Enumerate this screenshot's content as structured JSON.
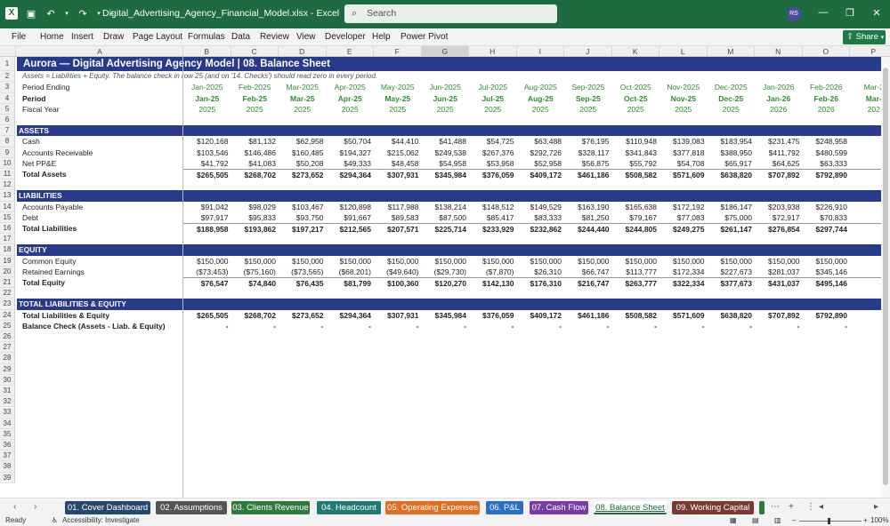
{
  "window": {
    "filename": "Digital_Advertising_Agency_Financial_Model.xlsx",
    "app": "Excel",
    "search_placeholder": "Search",
    "avatar": "RS",
    "accent": "#1d6b3e"
  },
  "menu": [
    "File",
    "Home",
    "Insert",
    "Draw",
    "Page Layout",
    "Formulas",
    "Data",
    "Review",
    "View",
    "Developer",
    "Help",
    "Power Pivot"
  ],
  "share_label": "Share",
  "columns": [
    "A",
    "B",
    "C",
    "D",
    "E",
    "F",
    "G",
    "H",
    "I",
    "J",
    "K",
    "L",
    "M",
    "N",
    "O",
    "P"
  ],
  "selected_column": "G",
  "sheet": {
    "title": "Aurora — Digital Advertising Agency Model  |  08. Balance Sheet",
    "note": "Assets = Liabilities + Equity. The balance check in row 25 (and on '14. Checks') should read zero in every period.",
    "period_ending_label": "Period Ending",
    "period_label": "Period",
    "fiscal_year_label": "Fiscal Year",
    "period_ending": [
      "Jan-2025",
      "Feb-2025",
      "Mar-2025",
      "Apr-2025",
      "May-2025",
      "Jun-2025",
      "Jul-2025",
      "Aug-2025",
      "Sep-2025",
      "Oct-2025",
      "Nov-2025",
      "Dec-2025",
      "Jan-2026",
      "Feb-2026",
      "Mar-2"
    ],
    "period": [
      "Jan-25",
      "Feb-25",
      "Mar-25",
      "Apr-25",
      "May-25",
      "Jun-25",
      "Jul-25",
      "Aug-25",
      "Sep-25",
      "Oct-25",
      "Nov-25",
      "Dec-25",
      "Jan-26",
      "Feb-26",
      "Mar-"
    ],
    "fiscal_year": [
      "2025",
      "2025",
      "2025",
      "2025",
      "2025",
      "2025",
      "2025",
      "2025",
      "2025",
      "2025",
      "2025",
      "2025",
      "2026",
      "2026",
      "202"
    ],
    "sections": {
      "assets": "ASSETS",
      "liabilities": "LIABILITIES",
      "equity": "EQUITY",
      "total_le": "TOTAL LIABILITIES & EQUITY"
    },
    "rows": {
      "cash": {
        "label": "Cash",
        "values": [
          "$120,168",
          "$81,132",
          "$62,958",
          "$50,704",
          "$44,410",
          "$41,488",
          "$54,725",
          "$63,488",
          "$76,195",
          "$110,948",
          "$139,083",
          "$183,954",
          "$231,475",
          "$248,958",
          "$32"
        ]
      },
      "ar": {
        "label": "Accounts Receivable",
        "values": [
          "$103,546",
          "$146,486",
          "$160,485",
          "$194,327",
          "$215,062",
          "$249,538",
          "$267,376",
          "$292,726",
          "$328,117",
          "$341,843",
          "$377,818",
          "$388,950",
          "$411,792",
          "$480,599",
          "$45"
        ]
      },
      "ppe": {
        "label": "Net PP&E",
        "values": [
          "$41,792",
          "$41,083",
          "$50,208",
          "$49,333",
          "$48,458",
          "$54,958",
          "$53,958",
          "$52,958",
          "$56,875",
          "$55,792",
          "$54,708",
          "$65,917",
          "$64,625",
          "$63,333",
          "$6"
        ]
      },
      "total_assets": {
        "label": "Total Assets",
        "values": [
          "$265,505",
          "$268,702",
          "$273,652",
          "$294,364",
          "$307,931",
          "$345,984",
          "$376,059",
          "$409,172",
          "$461,186",
          "$508,582",
          "$571,609",
          "$638,820",
          "$707,892",
          "$792,890",
          "$84"
        ]
      },
      "ap": {
        "label": "Accounts Payable",
        "values": [
          "$91,042",
          "$98,029",
          "$103,467",
          "$120,898",
          "$117,988",
          "$138,214",
          "$148,512",
          "$149,529",
          "$163,190",
          "$165,638",
          "$172,192",
          "$186,147",
          "$203,938",
          "$226,910",
          "$20"
        ]
      },
      "debt": {
        "label": "Debt",
        "values": [
          "$97,917",
          "$95,833",
          "$93,750",
          "$91,667",
          "$89,583",
          "$87,500",
          "$85,417",
          "$83,333",
          "$81,250",
          "$79,167",
          "$77,083",
          "$75,000",
          "$72,917",
          "$70,833",
          "$6"
        ]
      },
      "total_liabilities": {
        "label": "Total Liabilities",
        "values": [
          "$188,958",
          "$193,862",
          "$197,217",
          "$212,565",
          "$207,571",
          "$225,714",
          "$233,929",
          "$232,862",
          "$244,440",
          "$244,805",
          "$249,275",
          "$261,147",
          "$276,854",
          "$297,744",
          "$27"
        ]
      },
      "common_equity": {
        "label": "Common Equity",
        "values": [
          "$150,000",
          "$150,000",
          "$150,000",
          "$150,000",
          "$150,000",
          "$150,000",
          "$150,000",
          "$150,000",
          "$150,000",
          "$150,000",
          "$150,000",
          "$150,000",
          "$150,000",
          "$150,000",
          "$15"
        ]
      },
      "retained": {
        "label": "Retained Earnings",
        "values": [
          "($73,453)",
          "($75,160)",
          "($73,565)",
          "($68,201)",
          "($49,640)",
          "($29,730)",
          "($7,870)",
          "$26,310",
          "$66,747",
          "$113,777",
          "$172,334",
          "$227,673",
          "$281,037",
          "$345,146",
          "$41"
        ]
      },
      "total_equity": {
        "label": "Total Equity",
        "values": [
          "$76,547",
          "$74,840",
          "$76,435",
          "$81,799",
          "$100,360",
          "$120,270",
          "$142,130",
          "$176,310",
          "$216,747",
          "$263,777",
          "$322,334",
          "$377,673",
          "$431,037",
          "$495,146",
          "$56"
        ]
      },
      "total_le": {
        "label": "Total Liabilities & Equity",
        "values": [
          "$265,505",
          "$268,702",
          "$273,652",
          "$294,364",
          "$307,931",
          "$345,984",
          "$376,059",
          "$409,172",
          "$461,186",
          "$508,582",
          "$571,609",
          "$638,820",
          "$707,892",
          "$792,890",
          "$84"
        ]
      },
      "check": {
        "label": "Balance Check (Assets - Liab. & Equity)",
        "values": [
          "-",
          "-",
          "-",
          "-",
          "-",
          "-",
          "-",
          "-",
          "-",
          "-",
          "-",
          "-",
          "-",
          "-",
          "-"
        ]
      }
    }
  },
  "tabs": [
    {
      "label": "01. Cover Dashboard",
      "color": "#26476e"
    },
    {
      "label": "02. Assumptions",
      "color": "#555555"
    },
    {
      "label": "03. Clients Revenue",
      "color": "#2d7a3a"
    },
    {
      "label": "04. Headcount",
      "color": "#1f7a70"
    },
    {
      "label": "05. Operating Expenses",
      "color": "#e07020"
    },
    {
      "label": "06. P&L",
      "color": "#2a6fc4"
    },
    {
      "label": "07. Cash Flow",
      "color": "#7a3aa8"
    },
    {
      "label": "08. Balance Sheet",
      "color": "#ffffff"
    },
    {
      "label": "09. Working Capital",
      "color": "#7a3a30"
    }
  ],
  "status": {
    "ready": "Ready",
    "accessibility": "Accessibility: Investigate",
    "zoom": "100%"
  }
}
